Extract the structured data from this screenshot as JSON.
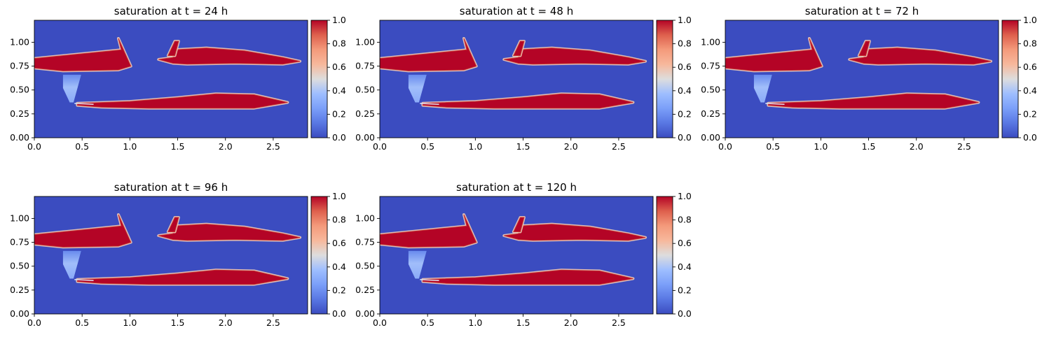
{
  "chart_data": {
    "type": "heatmap",
    "colormap": "coolwarm",
    "panels": [
      {
        "title": "saturation at t = 24 h",
        "time_h": 24
      },
      {
        "title": "saturation at t = 48 h",
        "time_h": 48
      },
      {
        "title": "saturation at t = 72 h",
        "time_h": 72
      },
      {
        "title": "saturation at t = 96 h",
        "time_h": 96
      },
      {
        "title": "saturation at t = 120 h",
        "time_h": 120
      }
    ],
    "xlim": [
      0,
      2.86
    ],
    "ylim": [
      0,
      1.23
    ],
    "x_ticks": [
      "0.0",
      "0.5",
      "1.0",
      "1.5",
      "2.0",
      "2.5"
    ],
    "y_ticks": [
      "0.00",
      "0.25",
      "0.50",
      "0.75",
      "1.00"
    ],
    "colorbar": {
      "range": [
        0,
        1
      ],
      "ticks": [
        "0.0",
        "0.2",
        "0.4",
        "0.6",
        "0.8",
        "1.0"
      ]
    },
    "regions": {
      "background_saturation": 0.0,
      "upper_left_plume": {
        "saturation": 1.0,
        "polygon": [
          [
            0.0,
            0.83
          ],
          [
            0.91,
            0.92
          ],
          [
            0.88,
            1.04
          ],
          [
            1.01,
            0.75
          ],
          [
            0.88,
            0.71
          ],
          [
            0.3,
            0.7
          ],
          [
            0.0,
            0.73
          ]
        ]
      },
      "upper_right_plume": {
        "saturation": 1.0,
        "polygon": [
          [
            1.45,
            0.92
          ],
          [
            1.8,
            0.94
          ],
          [
            2.2,
            0.91
          ],
          [
            2.6,
            0.84
          ],
          [
            2.78,
            0.8
          ],
          [
            2.6,
            0.77
          ],
          [
            2.1,
            0.78
          ],
          [
            1.6,
            0.77
          ],
          [
            1.45,
            0.78
          ],
          [
            1.3,
            0.82
          ],
          [
            1.45,
            0.84
          ]
        ]
      },
      "upper_right_finger": {
        "saturation": 1.0,
        "polygon": [
          [
            1.4,
            0.86
          ],
          [
            1.47,
            1.01
          ],
          [
            1.51,
            1.01
          ],
          [
            1.47,
            0.86
          ]
        ]
      },
      "lower_plume": {
        "saturation": 1.0,
        "polygon": [
          [
            0.45,
            0.36
          ],
          [
            1.0,
            0.38
          ],
          [
            1.5,
            0.42
          ],
          [
            1.9,
            0.46
          ],
          [
            2.3,
            0.45
          ],
          [
            2.65,
            0.37
          ],
          [
            2.3,
            0.31
          ],
          [
            1.8,
            0.31
          ],
          [
            1.2,
            0.31
          ],
          [
            0.7,
            0.32
          ],
          [
            0.45,
            0.34
          ]
        ]
      },
      "diffuse_wedge": {
        "saturation": 0.3,
        "polygon": [
          [
            0.3,
            0.66
          ],
          [
            0.49,
            0.66
          ],
          [
            0.41,
            0.37
          ],
          [
            0.37,
            0.37
          ],
          [
            0.3,
            0.52
          ]
        ]
      }
    }
  }
}
